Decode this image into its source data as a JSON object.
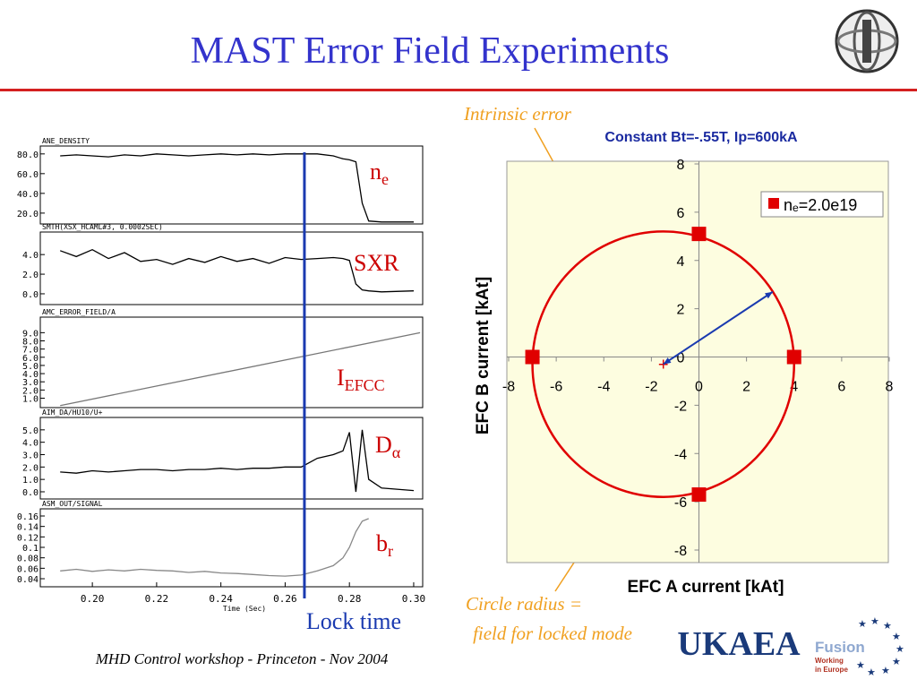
{
  "title": "MAST Error Field Experiments",
  "footer": "MHD Control workshop - Princeton - Nov 2004",
  "lock_label": "Lock time",
  "lock_time": 0.266,
  "trace_labels": [
    {
      "text": "n",
      "sub": "e"
    },
    {
      "text": "SXR"
    },
    {
      "text": "I",
      "sub": "EFCC"
    },
    {
      "text": "D",
      "sub": "α"
    },
    {
      "text": "b",
      "sub": "r"
    }
  ],
  "annotations": [
    {
      "text": "Intrinsic error"
    },
    {
      "text": "Circle radius ="
    },
    {
      "text": "field for locked mode"
    }
  ],
  "logos": {
    "ukaea": "UKAEA",
    "fusion": "Fusion",
    "working": "Working",
    "europe": "in Europe"
  },
  "chart_data": [
    {
      "type": "line",
      "title": "ANE_DENSITY",
      "xlim": [
        0.1838,
        0.3028
      ],
      "ylim": [
        9,
        88
      ],
      "yticks": [
        {
          "value": 80,
          "label": "80.0"
        },
        {
          "value": 60,
          "label": "60.0"
        },
        {
          "value": 40,
          "label": "40.0"
        },
        {
          "value": 20,
          "label": "20.0"
        }
      ],
      "x": [
        0.19,
        0.195,
        0.2,
        0.205,
        0.21,
        0.215,
        0.22,
        0.225,
        0.23,
        0.235,
        0.24,
        0.245,
        0.25,
        0.255,
        0.26,
        0.265,
        0.27,
        0.275,
        0.278,
        0.28,
        0.282,
        0.284,
        0.286,
        0.29,
        0.3
      ],
      "values": [
        78,
        79,
        78,
        77,
        79,
        78,
        80,
        79,
        78,
        79,
        80,
        79,
        80,
        79,
        80,
        80,
        80,
        78,
        75,
        74,
        72,
        30,
        12,
        11,
        11
      ],
      "color": "#000000"
    },
    {
      "type": "line",
      "title": "SMTH(XSX_HCAML#3, 0.0002SEC)",
      "xlim": [
        0.1838,
        0.3028
      ],
      "ylim": [
        -1.1,
        6.3
      ],
      "yticks": [
        {
          "value": 4,
          "label": "4.0"
        },
        {
          "value": 2,
          "label": "2.0"
        },
        {
          "value": 0,
          "label": "0.0"
        }
      ],
      "x": [
        0.19,
        0.195,
        0.2,
        0.205,
        0.21,
        0.215,
        0.22,
        0.225,
        0.23,
        0.235,
        0.24,
        0.245,
        0.25,
        0.255,
        0.26,
        0.265,
        0.27,
        0.275,
        0.278,
        0.28,
        0.282,
        0.284,
        0.286,
        0.29,
        0.3
      ],
      "values": [
        4.4,
        3.8,
        4.5,
        3.6,
        4.2,
        3.3,
        3.5,
        3.0,
        3.6,
        3.2,
        3.8,
        3.3,
        3.6,
        3.1,
        3.7,
        3.5,
        3.6,
        3.7,
        3.6,
        3.4,
        1.0,
        0.4,
        0.3,
        0.2,
        0.3
      ],
      "color": "#000000"
    },
    {
      "type": "line",
      "title": "AMC_ERROR_FIELD/A",
      "xlim": [
        0.1838,
        0.3028
      ],
      "ylim": [
        -0.15,
        10.9
      ],
      "yticks": [
        {
          "value": 9,
          "label": "9.0"
        },
        {
          "value": 8,
          "label": "8.0"
        },
        {
          "value": 7,
          "label": "7.0"
        },
        {
          "value": 6,
          "label": "6.0"
        },
        {
          "value": 5,
          "label": "5.0"
        },
        {
          "value": 4,
          "label": "4.0"
        },
        {
          "value": 3,
          "label": "3.0"
        },
        {
          "value": 2,
          "label": "2.0"
        },
        {
          "value": 1,
          "label": "1.0"
        }
      ],
      "x": [
        0.19,
        0.302
      ],
      "values": [
        0.1,
        9.0
      ],
      "color": "#777777"
    },
    {
      "type": "line",
      "title": "AIM_DA/HU10/U+",
      "xlim": [
        0.1838,
        0.3028
      ],
      "ylim": [
        -0.58,
        6.0
      ],
      "yticks": [
        {
          "value": 5,
          "label": "5.0"
        },
        {
          "value": 4,
          "label": "4.0"
        },
        {
          "value": 3,
          "label": "3.0"
        },
        {
          "value": 2,
          "label": "2.0"
        },
        {
          "value": 1,
          "label": "1.0"
        },
        {
          "value": 0,
          "label": "0.0"
        }
      ],
      "x": [
        0.19,
        0.195,
        0.2,
        0.205,
        0.21,
        0.215,
        0.22,
        0.225,
        0.23,
        0.235,
        0.24,
        0.245,
        0.25,
        0.255,
        0.26,
        0.265,
        0.27,
        0.275,
        0.278,
        0.28,
        0.282,
        0.284,
        0.286,
        0.29,
        0.3
      ],
      "values": [
        1.6,
        1.5,
        1.7,
        1.6,
        1.7,
        1.8,
        1.8,
        1.7,
        1.8,
        1.8,
        1.9,
        1.8,
        1.9,
        1.9,
        2.0,
        2.0,
        2.7,
        3.0,
        3.3,
        4.8,
        0.0,
        5.0,
        1.0,
        0.3,
        0.1
      ],
      "color": "#000000"
    },
    {
      "type": "line",
      "title": "ASM_OUT/SIGNAL",
      "xlabel": "Time (Sec)",
      "xlim": [
        0.1838,
        0.3028
      ],
      "ylim": [
        0.0246,
        0.1737
      ],
      "yticks": [
        0.16,
        0.14,
        0.12,
        0.1,
        0.08,
        0.06,
        0.04
      ],
      "xticks": [
        {
          "value": 0.2,
          "label": "0.20"
        },
        {
          "value": 0.22,
          "label": "0.22"
        },
        {
          "value": 0.24,
          "label": "0.24"
        },
        {
          "value": 0.26,
          "label": "0.26"
        },
        {
          "value": 0.28,
          "label": "0.28"
        },
        {
          "value": 0.3,
          "label": "0.30"
        }
      ],
      "x": [
        0.19,
        0.195,
        0.2,
        0.205,
        0.21,
        0.215,
        0.22,
        0.225,
        0.23,
        0.235,
        0.24,
        0.245,
        0.25,
        0.255,
        0.26,
        0.265,
        0.27,
        0.275,
        0.278,
        0.28,
        0.282,
        0.284,
        0.286,
        0.29,
        0.3
      ],
      "values": [
        0.055,
        0.058,
        0.054,
        0.057,
        0.055,
        0.058,
        0.056,
        0.055,
        0.052,
        0.054,
        0.051,
        0.05,
        0.048,
        0.046,
        0.045,
        0.047,
        0.055,
        0.065,
        0.08,
        0.1,
        0.13,
        0.15,
        0.155,
        null,
        null
      ],
      "color": "#888888"
    },
    {
      "type": "scatter",
      "title": "Constant Bt=-.55T, Ip=600kA",
      "xlabel": "EFC A current [kAt]",
      "ylabel": "EFC B current [kAt]",
      "xlim": [
        -8,
        8
      ],
      "ylim": [
        -8,
        8
      ],
      "xticks": [
        -8,
        -6,
        -4,
        -2,
        0,
        2,
        4,
        6,
        8
      ],
      "yticks": [
        8,
        6,
        4,
        2,
        0,
        -2,
        -4,
        -6,
        -8
      ],
      "series": [
        {
          "name": "nₑ=2.0e19",
          "color": "#e00000",
          "x": [
            0,
            -7,
            4,
            0
          ],
          "values": [
            5.1,
            0,
            0,
            -5.7
          ]
        }
      ],
      "fit": {
        "center": [
          -1.5,
          -0.3
        ],
        "radius": 5.5
      },
      "arrow_tip": [
        3.1,
        2.7
      ],
      "legend": "upper right"
    }
  ]
}
